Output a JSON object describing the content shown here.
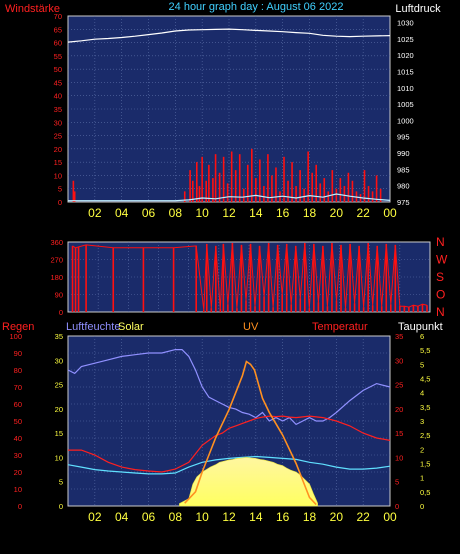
{
  "header": {
    "title": "24 hour graph day : August 06 2022",
    "left_label": "Windstärke",
    "right_label": "Luftdruck"
  },
  "bottom_header": {
    "regen": "Regen",
    "luftfeuchte": "Luftfeuchte",
    "solar": "Solar",
    "uv": "UV",
    "temperatur": "Temperatur",
    "taupunkt": "Taupunkt"
  },
  "direction_labels": [
    "N",
    "W",
    "S",
    "O",
    "N"
  ],
  "colors": {
    "background": "#000000",
    "plot_bg": "#1a2b6a",
    "grid": "#5a6fa8",
    "axis_red": "#ff2020",
    "axis_yellow": "#ffff40",
    "title_cyan": "#40d0ff",
    "pressure": "#ffffff",
    "wind": "#ff1010",
    "gust": "#c0f0ff",
    "humidity": "#9090ff",
    "temperature": "#ff2020",
    "dewpoint": "#60e0ff",
    "solar": "#ffff60",
    "uv": "#ff9020"
  },
  "x_ticks": [
    "02",
    "04",
    "06",
    "08",
    "10",
    "12",
    "14",
    "16",
    "18",
    "20",
    "22",
    "00"
  ],
  "chart_data": [
    {
      "type": "line",
      "name": "wind-pressure",
      "xlim": [
        0,
        24
      ],
      "left_axis": {
        "label": "Windstärke",
        "ylim": [
          0,
          70
        ],
        "ticks": [
          "0",
          "5",
          "10",
          "15",
          "20",
          "25",
          "30",
          "35",
          "40",
          "45",
          "50",
          "55",
          "60",
          "65",
          "70"
        ]
      },
      "right_axis": {
        "label": "Luftdruck",
        "ylim": [
          975,
          1032
        ],
        "ticks": [
          "975",
          "980",
          "985",
          "990",
          "995",
          "1000",
          "1005",
          "1010",
          "1015",
          "1020",
          "1025",
          "1030"
        ]
      },
      "grid": true,
      "series": [
        {
          "key": "pressure",
          "axis": "right",
          "x": [
            0,
            1,
            2,
            3,
            4,
            5,
            6,
            7,
            8,
            9,
            10,
            11,
            12,
            13,
            14,
            15,
            16,
            17,
            18,
            19,
            20,
            21,
            22,
            23,
            24
          ],
          "values": [
            1024.0,
            1024.4,
            1024.9,
            1025.1,
            1025.4,
            1025.8,
            1026.3,
            1026.8,
            1027.4,
            1027.7,
            1027.8,
            1027.9,
            1028.0,
            1027.8,
            1027.6,
            1027.4,
            1027.2,
            1026.9,
            1026.7,
            1026.1,
            1025.8,
            1025.7,
            1025.8,
            1025.9,
            1026.0
          ]
        },
        {
          "key": "wind",
          "axis": "left",
          "style": "spikes",
          "x": [
            0.4,
            0.5,
            8.7,
            9.1,
            9.3,
            9.6,
            9.8,
            10.0,
            10.3,
            10.5,
            10.8,
            11.0,
            11.3,
            11.6,
            11.9,
            12.2,
            12.5,
            12.8,
            13.1,
            13.4,
            13.7,
            14.0,
            14.3,
            14.6,
            14.9,
            15.2,
            15.5,
            15.8,
            16.1,
            16.4,
            16.7,
            17.0,
            17.3,
            17.6,
            17.9,
            18.2,
            18.5,
            18.8,
            19.1,
            19.4,
            19.7,
            20.0,
            20.3,
            20.6,
            20.9,
            21.2,
            21.5,
            21.8,
            22.1,
            22.4,
            22.7,
            23.0,
            23.3
          ],
          "values": [
            8,
            4,
            4,
            12,
            8,
            15,
            6,
            17,
            8,
            14,
            9,
            18,
            11,
            17,
            7,
            19,
            12,
            18,
            5,
            14,
            20,
            9,
            16,
            6,
            18,
            10,
            13,
            4,
            17,
            8,
            15,
            6,
            12,
            5,
            19,
            11,
            14,
            7,
            9,
            4,
            12,
            5,
            9,
            6,
            11,
            8,
            4,
            3,
            12,
            6,
            4,
            10,
            5
          ]
        },
        {
          "key": "gust",
          "axis": "left",
          "x": [
            0,
            2,
            4,
            6,
            8,
            9,
            10,
            11,
            12,
            13,
            14,
            15,
            16,
            17,
            18,
            19,
            20,
            21,
            22,
            23,
            24
          ],
          "values": [
            0.5,
            0.5,
            0.5,
            0.5,
            0.5,
            0.8,
            1.5,
            1.2,
            2.0,
            1.8,
            2.5,
            1.6,
            2.2,
            1.5,
            2.4,
            1.8,
            3.0,
            2.2,
            1.5,
            1.0,
            0.6
          ]
        }
      ]
    },
    {
      "type": "line",
      "name": "wind-direction",
      "xlim": [
        0,
        24
      ],
      "left_axis": {
        "ylim": [
          0,
          360
        ],
        "ticks": [
          "0",
          "90",
          "180",
          "270",
          "360"
        ]
      },
      "right_axis": {
        "ticks": [
          "N",
          "O",
          "S",
          "W",
          "N"
        ]
      },
      "grid": true,
      "series": [
        {
          "key": "direction",
          "style": "spikes",
          "x": [
            0.3,
            0.5,
            0.7,
            1.2,
            3,
            5,
            7,
            8.5,
            9.0,
            9.2,
            9.5,
            9.8,
            10.1,
            10.3,
            10.6,
            10.9,
            11.2,
            11.5,
            11.8,
            12.1,
            12.4,
            12.7,
            13.0,
            13.3,
            13.6,
            13.9,
            14.2,
            14.5,
            14.8,
            15.1,
            15.4,
            15.7,
            16.0,
            16.3,
            16.6,
            16.9,
            17.2,
            17.5,
            17.8,
            18.1,
            18.4,
            18.7,
            19.0,
            19.3,
            19.6,
            19.9,
            20.2,
            20.5,
            20.8,
            21.1,
            21.4,
            21.7,
            22.0,
            22.3,
            22.6,
            22.9,
            23.2,
            23.5,
            23.8
          ],
          "values": [
            340,
            330,
            335,
            345,
            330,
            330,
            330,
            340,
            10,
            350,
            20,
            340,
            15,
            350,
            40,
            355,
            20,
            345,
            60,
            350,
            30,
            340,
            80,
            355,
            25,
            345,
            90,
            350,
            40,
            340,
            70,
            355,
            20,
            350,
            50,
            340,
            30,
            355,
            60,
            345,
            20,
            350,
            45,
            340,
            25,
            355,
            35,
            340,
            30,
            350,
            40,
            345,
            30,
            30,
            25,
            35,
            30,
            40,
            35
          ]
        }
      ]
    },
    {
      "type": "line",
      "name": "weather",
      "xlim": [
        0,
        24
      ],
      "axes": {
        "regen": {
          "label": "Regen",
          "ylim": [
            0,
            100
          ],
          "ticks": [
            "0",
            "10",
            "20",
            "30",
            "40",
            "50",
            "60",
            "70",
            "80",
            "90",
            "100"
          ]
        },
        "luftfeuchte": {
          "label": "Luftfeuchte",
          "ylim": [
            0,
            35
          ],
          "ticks": [
            "0",
            "5",
            "10",
            "15",
            "20",
            "25",
            "30",
            "35"
          ]
        },
        "temperatur": {
          "label": "Temperatur",
          "ylim": [
            0,
            35
          ],
          "ticks": [
            "0",
            "5",
            "10",
            "15",
            "20",
            "25",
            "30",
            "35"
          ]
        },
        "taupunkt": {
          "label": "Taupunkt",
          "ylim": [
            0,
            6
          ],
          "ticks": [
            "0",
            "0,5",
            "1",
            "1,5",
            "2",
            "2,5",
            "3",
            "3,5",
            "4",
            "4,5",
            "5",
            "5,5",
            "6"
          ]
        }
      },
      "grid": true,
      "series": [
        {
          "key": "humidity",
          "axis": "regen",
          "x": [
            0,
            0.5,
            1,
            2,
            3,
            4,
            5,
            6,
            7,
            8,
            8.5,
            9,
            9.5,
            10,
            10.5,
            11,
            11.5,
            12,
            12.5,
            13,
            13.5,
            14,
            14.5,
            15,
            15.5,
            16,
            16.5,
            17,
            17.5,
            18,
            18.5,
            19,
            19.5,
            20,
            21,
            22,
            23,
            24
          ],
          "values": [
            80,
            78,
            82,
            84,
            86,
            88,
            89,
            90,
            90,
            92,
            92,
            88,
            80,
            70,
            64,
            62,
            60,
            58,
            57,
            55,
            54,
            52,
            55,
            50,
            52,
            50,
            52,
            48,
            50,
            52,
            50,
            50,
            52,
            55,
            62,
            68,
            72,
            70
          ]
        },
        {
          "key": "temperature",
          "axis": "temperatur",
          "x": [
            0,
            1,
            2,
            3,
            4,
            5,
            6,
            7,
            8,
            9,
            10,
            10.5,
            11,
            11.5,
            12,
            12.5,
            13,
            13.5,
            14,
            14.5,
            15,
            15.5,
            16,
            16.5,
            17,
            18,
            19,
            20,
            21,
            22,
            23,
            24
          ],
          "values": [
            11.5,
            11.5,
            10.5,
            9.0,
            8.0,
            7.5,
            7.2,
            7.0,
            7.6,
            9.0,
            12.5,
            13.5,
            14.5,
            15.0,
            16.0,
            16.5,
            17.0,
            17.5,
            18.0,
            18.3,
            18.5,
            18.4,
            18.5,
            18.3,
            18.2,
            18.5,
            18.2,
            17.5,
            16.5,
            15.0,
            14.0,
            13.5
          ]
        },
        {
          "key": "dewpoint",
          "axis": "temperatur",
          "x": [
            0,
            1,
            2,
            3,
            4,
            5,
            6,
            7,
            8,
            9,
            10,
            11,
            12,
            13,
            14,
            15,
            16,
            17,
            18,
            19,
            20,
            21,
            22,
            23,
            24
          ],
          "values": [
            8.5,
            8.0,
            7.5,
            7.2,
            7.0,
            6.8,
            6.6,
            6.6,
            6.8,
            8.0,
            9.0,
            9.5,
            9.8,
            10.0,
            10.2,
            10.0,
            9.8,
            9.6,
            9.0,
            8.6,
            8.0,
            7.6,
            7.6,
            7.8,
            8.2
          ]
        },
        {
          "key": "solar",
          "axis": "luftfeuchte",
          "style": "area",
          "x": [
            8.3,
            9,
            9.3,
            9.6,
            10,
            10.3,
            10.6,
            11,
            11.3,
            11.6,
            12,
            12.3,
            12.6,
            13,
            13.3,
            13.6,
            14,
            14.3,
            14.6,
            15,
            15.3,
            15.6,
            16,
            16.3,
            16.6,
            17,
            17.3,
            17.6,
            18,
            18.3,
            18.6
          ],
          "values": [
            0.5,
            1.5,
            4.5,
            6,
            7,
            7.5,
            8,
            8.5,
            9,
            9.2,
            9.5,
            9.6,
            9.8,
            9.9,
            10,
            9.9,
            9.8,
            9.6,
            9.5,
            9.2,
            9.0,
            8.6,
            8.3,
            7.8,
            7.4,
            7.0,
            6.4,
            5.6,
            4.5,
            2.5,
            0.6
          ]
        },
        {
          "key": "uv",
          "axis": "taupunkt",
          "x": [
            8.7,
            9.5,
            10,
            10.5,
            11,
            11.5,
            12,
            12.5,
            13,
            13.3,
            13.6,
            13.9,
            14.2,
            14.5,
            15,
            15.5,
            16,
            16.5,
            17,
            17.5,
            18,
            18.5
          ],
          "values": [
            0.1,
            0.5,
            1.2,
            1.8,
            2.4,
            2.9,
            3.4,
            4.0,
            4.6,
            5.1,
            5.0,
            4.8,
            4.3,
            3.8,
            3.3,
            2.9,
            2.5,
            2.0,
            1.5,
            0.9,
            0.3,
            0.05
          ]
        }
      ]
    }
  ]
}
